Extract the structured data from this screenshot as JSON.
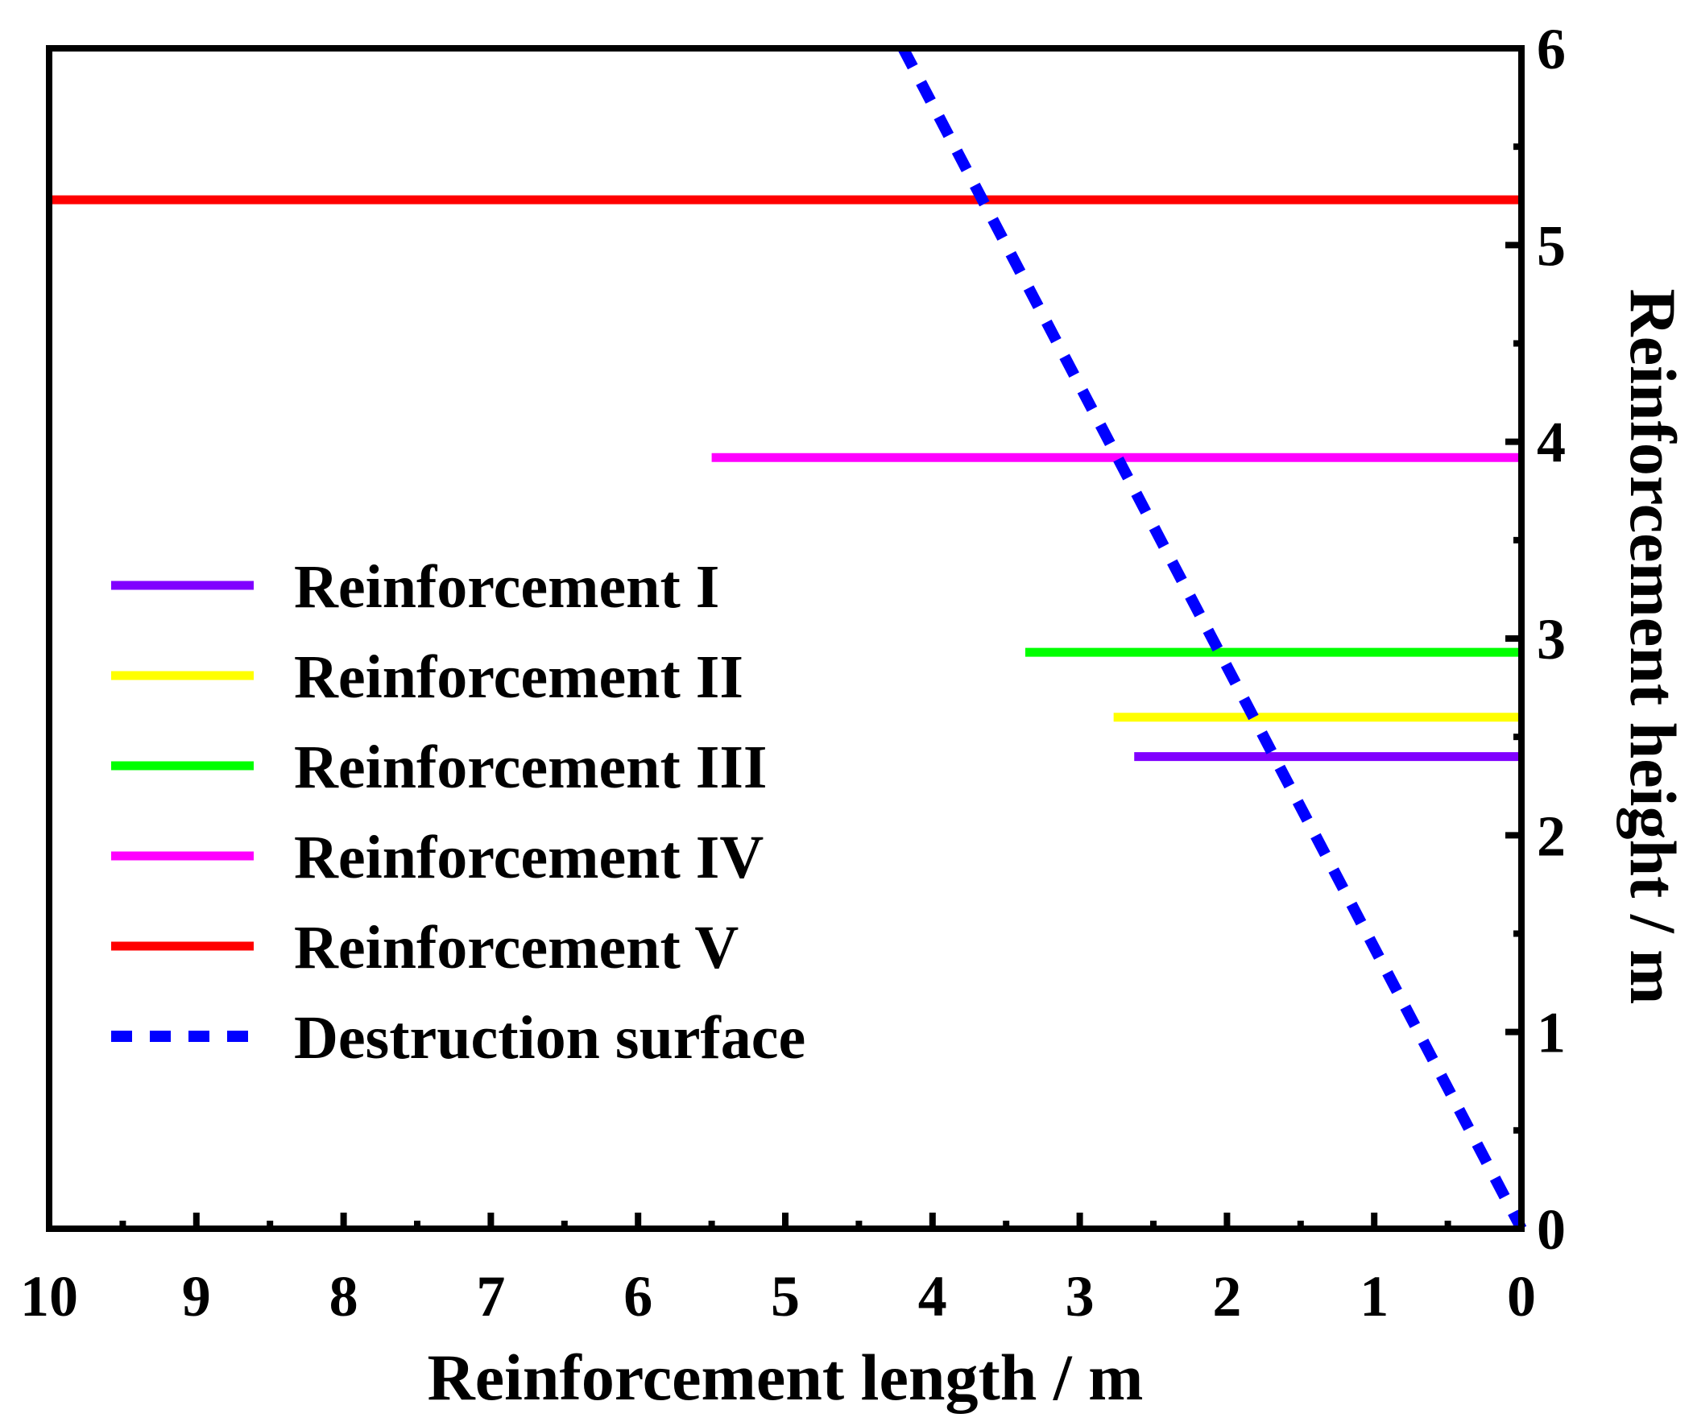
{
  "chart_data": {
    "type": "line",
    "title": "",
    "xlabel": "Reinforcement length / m",
    "ylabel": "Reinforcement height / m",
    "xlim": [
      10,
      0
    ],
    "ylim": [
      0,
      6
    ],
    "x_reversed": true,
    "y_axis_side": "right",
    "grid": false,
    "legend_position": "center-left",
    "x_ticks": [
      10,
      9,
      8,
      7,
      6,
      5,
      4,
      3,
      2,
      1,
      0
    ],
    "x_tick_labels": [
      "10",
      "9",
      "8",
      "7",
      "6",
      "5",
      "4",
      "3",
      "2",
      "1",
      "0"
    ],
    "y_ticks": [
      0,
      1,
      2,
      3,
      4,
      5,
      6
    ],
    "y_tick_labels": [
      "0",
      "1",
      "2",
      "3",
      "4",
      "5",
      "6"
    ],
    "series": [
      {
        "name": "Reinforcement I",
        "color": "#8000ff",
        "style": "solid",
        "points": [
          [
            2.63,
            2.4
          ],
          [
            0,
            2.4
          ]
        ]
      },
      {
        "name": "Reinforcement II",
        "color": "#ffff00",
        "style": "solid",
        "points": [
          [
            2.77,
            2.6
          ],
          [
            0,
            2.6
          ]
        ]
      },
      {
        "name": "Reinforcement III",
        "color": "#00ff00",
        "style": "solid",
        "points": [
          [
            3.37,
            2.93
          ],
          [
            0,
            2.93
          ]
        ]
      },
      {
        "name": "Reinforcement IV",
        "color": "#ff00ff",
        "style": "solid",
        "points": [
          [
            5.5,
            3.92
          ],
          [
            0,
            3.92
          ]
        ]
      },
      {
        "name": "Reinforcement V",
        "color": "#ff0000",
        "style": "solid",
        "points": [
          [
            10,
            5.23
          ],
          [
            0,
            5.23
          ]
        ]
      },
      {
        "name": "Destruction surface",
        "color": "#0000ff",
        "style": "dashed",
        "points": [
          [
            4.2,
            6
          ],
          [
            0,
            0
          ]
        ]
      }
    ]
  }
}
